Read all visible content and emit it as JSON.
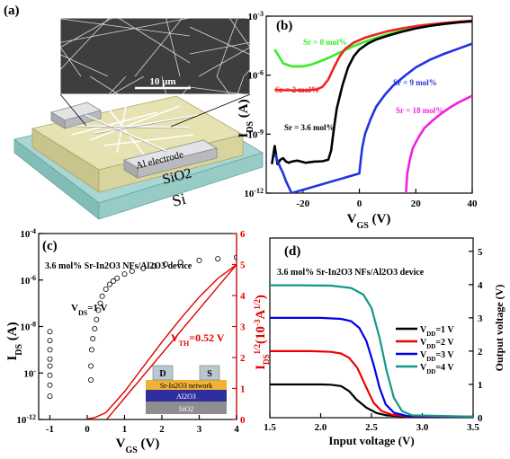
{
  "panels": {
    "a": {
      "tag": "(a)",
      "scale_bar": "10 μm",
      "electrode_label": "Al electrode",
      "layer_oxide": "SiO2",
      "layer_substrate": "Si",
      "colors": {
        "substrate": "#a9d6d3",
        "oxide": "#e6e2b2",
        "electrode": "#cfd1d4"
      }
    },
    "b": {
      "tag": "(b)",
      "ylabel_main": "I",
      "ylabel_sub": "DS",
      "ylabel_unit": " (A)",
      "xlabel_main": "V",
      "xlabel_sub": "GS",
      "xlabel_unit": " (V)"
    },
    "c": {
      "tag": "(c)",
      "device_label": "3.6 mol% Sr-In2O3 NFs/Al2O3 device",
      "vds_label": "V",
      "vds_sub": "DS",
      "vds_value": "=1 V",
      "vth_main": "V",
      "vth_sub": "TH",
      "vth_value": "=0.52 V",
      "ylabel_main": "I",
      "ylabel_sub": "DS",
      "ylabel_unit": " (A)",
      "xlabel_main": "V",
      "xlabel_sub": "GS",
      "xlabel_unit": " (V)",
      "y2label": "I",
      "y2label_sub": "DS",
      "y2label_sup": "1/2",
      "y2label_unit": "(10",
      "y2label_exp": "-3",
      "y2label_end": "A",
      "y2label_end_sup": "1/2",
      "y2label_close": ")",
      "inset": {
        "drain": "D",
        "source": "S",
        "network": "Sr-In2O3 network",
        "dielectric": "Al2O3",
        "oxide": "SiO2"
      }
    },
    "d": {
      "tag": "(d)",
      "device_label": "3.6 mol% Sr-In2O3 NFs/Al2O3 device",
      "xlabel": "Input voltage (V)",
      "ylabel": "Output voltage (V)"
    }
  },
  "chart_data": [
    {
      "panel": "b",
      "type": "line",
      "xlabel": "V_GS (V)",
      "ylabel": "I_DS (A)",
      "xlim": [
        -33,
        40
      ],
      "ylim": [
        1e-12,
        0.001
      ],
      "yscale": "log",
      "x_ticks": [
        -20,
        0,
        20,
        40
      ],
      "y_ticks": [
        1e-12,
        1e-09,
        1e-06,
        0.001
      ],
      "y_tick_labels": [
        "10-12",
        "10-9",
        "10-6",
        "10-3"
      ],
      "series": [
        {
          "name": "Sr = 0 mol%",
          "color": "#33ee22",
          "x": [
            -30,
            -29,
            -27,
            -24,
            -20,
            -17,
            -14,
            -11,
            -8,
            -5,
            -2,
            2,
            6,
            10,
            15,
            20,
            25,
            30,
            35,
            40
          ],
          "y": [
            2e-05,
            1.2e-05,
            4e-06,
            2.8e-06,
            2.8e-06,
            3.5e-06,
            5e-06,
            7.5e-06,
            1.2e-05,
            1.9e-05,
            3e-05,
            5e-05,
            8e-05,
            0.00012,
            0.00018,
            0.00025,
            0.00033,
            0.00042,
            0.0005,
            0.0006
          ]
        },
        {
          "name": "Sr = 2 mol%",
          "color": "#ee2222",
          "x": [
            -30,
            -26,
            -22,
            -18,
            -15,
            -13,
            -11,
            -9,
            -7,
            -5,
            -2,
            2,
            6,
            10,
            15,
            20,
            25,
            30,
            35,
            40
          ],
          "y": [
            1.8e-07,
            1.7e-07,
            1.7e-07,
            1.7e-07,
            1.9e-07,
            2.6e-07,
            6e-07,
            2.5e-06,
            9e-06,
            2.2e-05,
            4.5e-05,
            8e-05,
            0.00012,
            0.00017,
            0.00024,
            0.00031,
            0.00038,
            0.00045,
            0.00052,
            0.00058
          ]
        },
        {
          "name": "Sr = 3.6 mol%",
          "color": "#000000",
          "x": [
            -31,
            -30,
            -29,
            -28,
            -27,
            -26,
            -25,
            -24,
            -22,
            -19,
            -16,
            -13,
            -11,
            -10,
            -9,
            -8,
            -6,
            -4,
            -2,
            0,
            3,
            6,
            10,
            15,
            20,
            25,
            30,
            35,
            40
          ],
          "y": [
            3e-11,
            2.5e-10,
            3e-11,
            5e-11,
            6e-11,
            4e-11,
            3.5e-11,
            4e-11,
            4.5e-11,
            3.5e-11,
            4e-11,
            4.2e-11,
            5e-11,
            1.5e-10,
            2e-09,
            2e-08,
            3e-07,
            2.5e-06,
            9e-06,
            2e-05,
            4e-05,
            6.5e-05,
            0.0001,
            0.00016,
            0.00024,
            0.00032,
            0.0004,
            0.00048,
            0.00055
          ]
        },
        {
          "name": "Sr = 9 mol%",
          "color": "#2233dd",
          "x": [
            -30,
            -28,
            -27,
            -26,
            -25,
            -24,
            0,
            0.5,
            1,
            2,
            4,
            6,
            9,
            12,
            16,
            20,
            25,
            30,
            35,
            40
          ],
          "y": [
            1e-10,
            2e-11,
            1e-11,
            4e-12,
            2e-12,
            1e-12,
            1e-11,
            5e-11,
            2e-10,
            1e-09,
            6e-09,
            2.5e-08,
            1e-07,
            3e-07,
            9e-07,
            2.5e-06,
            6e-06,
            1.2e-05,
            2.2e-05,
            4e-05
          ]
        },
        {
          "name": "Sr = 18 mol%",
          "color": "#ee22dd",
          "x": [
            16.5,
            17,
            18,
            19,
            21,
            23,
            26,
            29,
            32,
            35,
            38,
            40
          ],
          "y": [
            1e-12,
            1e-11,
            6e-11,
            2e-10,
            7e-10,
            2e-09,
            5e-09,
            1.1e-08,
            2.2e-08,
            4e-08,
            6.5e-08,
            9e-08
          ]
        }
      ]
    },
    {
      "panel": "c",
      "type": "scatter",
      "xlabel": "V_GS (V)",
      "ylabel": "I_DS (A)",
      "y2label": "I_DS^1/2 (10^-3 A^1/2)",
      "xlim": [
        -1.3,
        4
      ],
      "ylim": [
        1e-12,
        0.0001
      ],
      "yscale": "log",
      "y2lim": [
        0,
        6
      ],
      "x_ticks": [
        -1,
        0,
        1,
        2,
        3,
        4
      ],
      "y_ticks": [
        1e-12,
        1e-10,
        1e-08,
        1e-06,
        0.0001
      ],
      "y_tick_labels": [
        "10-12",
        "10-10",
        "10-8",
        "10-6",
        "10-4"
      ],
      "y2_ticks": [
        0,
        1,
        2,
        3,
        4,
        5,
        6
      ],
      "series": [
        {
          "name": "I_DS",
          "color": "#000000",
          "marker": "open-circle",
          "x": [
            -1,
            -1,
            -1,
            -1,
            -1,
            -1,
            -1,
            -1,
            0.1,
            0.1,
            0.12,
            0.15,
            0.2,
            0.25,
            0.3,
            0.35,
            0.4,
            0.5,
            0.6,
            0.7,
            0.8,
            1.0,
            1.2,
            1.5,
            1.8,
            2.1,
            2.5,
            3.0,
            3.5,
            4.0
          ],
          "y": [
            1e-11,
            3e-11,
            8e-11,
            2e-10,
            4e-10,
            1e-09,
            2.5e-09,
            6e-09,
            5e-11,
            2e-10,
            1e-09,
            3e-09,
            8e-09,
            2e-08,
            5e-08,
            1e-07,
            2e-07,
            4e-07,
            6.5e-07,
            9e-07,
            1.2e-06,
            1.8e-06,
            2.4e-06,
            3.2e-06,
            4e-06,
            4.8e-06,
            5.8e-06,
            7e-06,
            8.2e-06,
            9.5e-06
          ]
        },
        {
          "name": "I_DS^1/2",
          "color": "#e00000",
          "axis": "right",
          "x": [
            0.0,
            0.2,
            0.5,
            1.0,
            1.5,
            2.0,
            2.5,
            3.0,
            3.5,
            4.0
          ],
          "y": [
            0.02,
            0.06,
            0.22,
            0.9,
            1.7,
            2.5,
            3.25,
            3.95,
            4.55,
            5.0
          ]
        },
        {
          "name": "linear fit",
          "color": "#e00000",
          "axis": "right",
          "x": [
            0.52,
            4.0
          ],
          "y": [
            0.0,
            5.0
          ]
        }
      ]
    },
    {
      "panel": "d",
      "type": "line",
      "xlabel": "Input voltage (V)",
      "ylabel": "Output voltage (V)",
      "xlim": [
        1.5,
        3.5
      ],
      "ylim": [
        0,
        5.4
      ],
      "x_ticks": [
        1.5,
        2.0,
        2.5,
        3.0,
        3.5
      ],
      "y_ticks": [
        0,
        1,
        2,
        3,
        4,
        5
      ],
      "series": [
        {
          "name": "V_DD=1 V",
          "color": "#000000",
          "x": [
            1.5,
            1.8,
            2.0,
            2.1,
            2.2,
            2.28,
            2.35,
            2.45,
            2.55,
            2.65,
            2.8,
            3.5
          ],
          "y": [
            1.0,
            1.0,
            1.0,
            0.99,
            0.95,
            0.8,
            0.55,
            0.3,
            0.14,
            0.07,
            0.04,
            0.02
          ]
        },
        {
          "name": "V_DD=2 V",
          "color": "#ee0000",
          "x": [
            1.5,
            1.9,
            2.1,
            2.2,
            2.28,
            2.36,
            2.45,
            2.52,
            2.6,
            2.7,
            2.85,
            3.5
          ],
          "y": [
            2.0,
            2.0,
            1.98,
            1.93,
            1.8,
            1.5,
            0.9,
            0.45,
            0.2,
            0.09,
            0.04,
            0.02
          ]
        },
        {
          "name": "V_DD=3 V",
          "color": "#0000ee",
          "x": [
            1.5,
            2.0,
            2.2,
            2.3,
            2.38,
            2.45,
            2.52,
            2.58,
            2.64,
            2.72,
            2.85,
            3.5
          ],
          "y": [
            3.0,
            3.0,
            2.97,
            2.9,
            2.7,
            2.3,
            1.6,
            0.9,
            0.4,
            0.15,
            0.05,
            0.03
          ]
        },
        {
          "name": "V_DD=4 V",
          "color": "#119988",
          "x": [
            1.5,
            1.8,
            2.1,
            2.3,
            2.42,
            2.5,
            2.58,
            2.65,
            2.72,
            2.8,
            2.9,
            3.5
          ],
          "y": [
            3.98,
            3.98,
            3.97,
            3.9,
            3.7,
            3.3,
            2.4,
            1.4,
            0.6,
            0.2,
            0.07,
            0.03
          ]
        }
      ]
    }
  ]
}
